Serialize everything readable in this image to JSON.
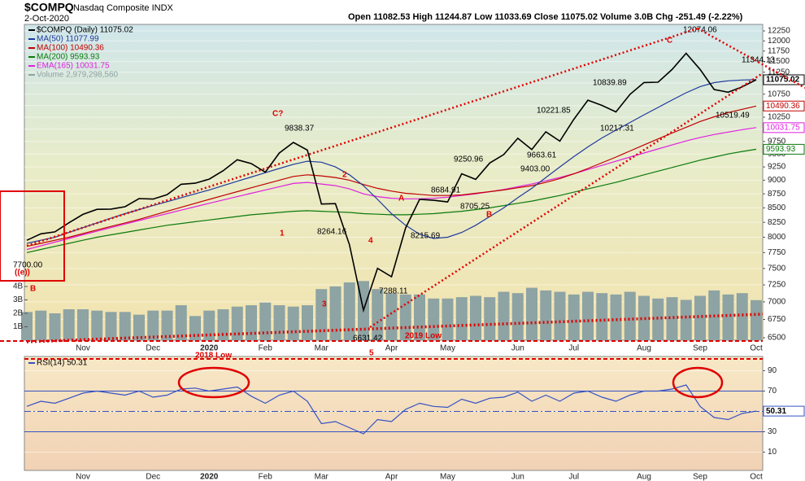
{
  "chart_data": [
    {
      "type": "line",
      "title": "$COMPQ",
      "subtitle": "Nasdaq Composite INDX",
      "date": "2-Oct-2020",
      "quote": "Open 11082.53 High 11244.87 Low 11033.69 Close 11075.02 Volume 3.0B Chg -251.49 (-2.22%)",
      "categories": [
        null,
        null,
        null,
        null,
        "Nov",
        null,
        null,
        null,
        null,
        "Dec",
        null,
        null,
        null,
        "2020",
        null,
        null,
        null,
        "Feb",
        null,
        null,
        null,
        "Mar",
        null,
        null,
        null,
        null,
        "Apr",
        null,
        null,
        null,
        "May",
        null,
        null,
        null,
        null,
        "Jun",
        null,
        null,
        null,
        "Jul",
        null,
        null,
        null,
        null,
        "Aug",
        null,
        null,
        null,
        "Sep",
        null,
        null,
        null,
        "Oct"
      ],
      "log_scale": true,
      "grid": true,
      "ylim": [
        6500,
        12250
      ],
      "yticks": [
        6500,
        6750,
        7000,
        7250,
        7500,
        7750,
        8000,
        8250,
        8500,
        8750,
        9000,
        9250,
        9500,
        9750,
        10000,
        10250,
        10500,
        10750,
        11000,
        11250,
        11500,
        11750,
        12000,
        12250
      ],
      "series": [
        {
          "name": "$COMPQ (Daily) 11075.02",
          "color": "#000000",
          "end_label": true,
          "values": [
            7950,
            8057,
            8089,
            8243,
            8386,
            8475,
            8479,
            8520,
            8665,
            8656,
            8735,
            8925,
            8945,
            9020,
            9179,
            9388,
            9314,
            9151,
            9520,
            9731,
            9577,
            8567,
            8575,
            7875,
            6880,
            7502,
            7373,
            8154,
            8650,
            8634,
            8605,
            9121,
            9015,
            9325,
            9490,
            9814,
            9589,
            9946,
            9757,
            10208,
            10617,
            10503,
            10363,
            10746,
            11011,
            11019,
            11312,
            11696,
            11313,
            10854,
            10793,
            10914,
            11075.02
          ]
        },
        {
          "name": "MA(50) 11077.99",
          "color": "#1f3a9e",
          "end_label": false,
          "values": [
            7900,
            7950,
            8000,
            8080,
            8160,
            8240,
            8320,
            8400,
            8470,
            8540,
            8610,
            8680,
            8750,
            8820,
            8900,
            8980,
            9060,
            9140,
            9220,
            9300,
            9360,
            9340,
            9250,
            9100,
            8900,
            8650,
            8400,
            8200,
            8050,
            7980,
            8000,
            8080,
            8200,
            8350,
            8500,
            8680,
            8850,
            9050,
            9250,
            9450,
            9640,
            9820,
            9980,
            10140,
            10300,
            10460,
            10620,
            10780,
            10920,
            11010,
            11050,
            11070,
            11077.99
          ]
        },
        {
          "name": "MA(100) 10490.36",
          "color": "#c00000",
          "end_label": true,
          "values": [
            7850,
            7900,
            7950,
            8000,
            8060,
            8120,
            8180,
            8240,
            8300,
            8370,
            8440,
            8510,
            8580,
            8650,
            8720,
            8790,
            8860,
            8930,
            9000,
            9070,
            9100,
            9080,
            9050,
            9000,
            8920,
            8850,
            8800,
            8760,
            8740,
            8720,
            8720,
            8730,
            8760,
            8790,
            8820,
            8860,
            8900,
            8960,
            9030,
            9120,
            9220,
            9330,
            9440,
            9560,
            9680,
            9800,
            9920,
            10040,
            10160,
            10260,
            10350,
            10420,
            10490.36
          ]
        },
        {
          "name": "MA(200) 9593.93",
          "color": "#0b7a0b",
          "end_label": true,
          "values": [
            7750,
            7800,
            7850,
            7900,
            7950,
            8000,
            8040,
            8080,
            8120,
            8160,
            8200,
            8230,
            8260,
            8290,
            8320,
            8350,
            8380,
            8400,
            8420,
            8440,
            8450,
            8440,
            8430,
            8420,
            8400,
            8390,
            8380,
            8380,
            8390,
            8400,
            8420,
            8440,
            8470,
            8500,
            8540,
            8580,
            8620,
            8670,
            8720,
            8780,
            8840,
            8900,
            8960,
            9030,
            9100,
            9170,
            9240,
            9310,
            9380,
            9440,
            9500,
            9550,
            9593.93
          ]
        },
        {
          "name": "EMA(165) 10031.75",
          "color": "#e020e0",
          "end_label": true,
          "values": [
            7800,
            7860,
            7920,
            7980,
            8040,
            8100,
            8160,
            8220,
            8280,
            8340,
            8400,
            8460,
            8520,
            8580,
            8640,
            8700,
            8760,
            8820,
            8880,
            8940,
            8960,
            8930,
            8900,
            8840,
            8750,
            8700,
            8670,
            8660,
            8660,
            8670,
            8690,
            8720,
            8750,
            8790,
            8830,
            8880,
            8930,
            8990,
            9050,
            9120,
            9200,
            9280,
            9360,
            9440,
            9520,
            9600,
            9680,
            9760,
            9830,
            9890,
            9940,
            9990,
            10031.75
          ]
        }
      ],
      "volume": {
        "name": "Volume 2,979,298,560",
        "color": "#8ea3a3",
        "ylim": [
          0,
          23000000000
        ],
        "yticks": [
          {
            "value": 1000000000,
            "label": "1B"
          },
          {
            "value": 2000000000,
            "label": "2B"
          },
          {
            "value": 3000000000,
            "label": "3B"
          },
          {
            "value": 4000000000,
            "label": "4B"
          }
        ],
        "values": [
          2100000000,
          2200000000,
          2000000000,
          2300000000,
          2300000000,
          2200000000,
          2100000000,
          2100000000,
          1900000000,
          2200000000,
          2200000000,
          2600000000,
          1800000000,
          2200000000,
          2300000000,
          2500000000,
          2600000000,
          2800000000,
          2600000000,
          2500000000,
          2600000000,
          3800000000,
          4000000000,
          4300000000,
          4400000000,
          3800000000,
          3500000000,
          3400000000,
          3400000000,
          3100000000,
          3100000000,
          3200000000,
          3300000000,
          3200000000,
          3600000000,
          3500000000,
          3900000000,
          3700000000,
          3600000000,
          3400000000,
          3600000000,
          3500000000,
          3400000000,
          3600000000,
          3300000000,
          3100000000,
          3200000000,
          3000000000,
          3300000000,
          3700000000,
          3400000000,
          3500000000,
          2979298560
        ]
      },
      "annotations": [
        {
          "text": "C?",
          "color": "#e00000"
        },
        {
          "text": "9838.37",
          "color": "#000000"
        },
        {
          "text": "2",
          "color": "#e00000"
        },
        {
          "text": "1",
          "color": "#e00000"
        },
        {
          "text": "3",
          "color": "#e00000"
        },
        {
          "text": "4",
          "color": "#e00000"
        },
        {
          "text": "5",
          "color": "#e00000"
        },
        {
          "text": "A",
          "color": "#e00000"
        },
        {
          "text": "B",
          "color": "#e00000"
        },
        {
          "text": "C",
          "color": "#e00000"
        },
        {
          "text": "8264.16",
          "color": "#000000"
        },
        {
          "text": "8215.69",
          "color": "#000000"
        },
        {
          "text": "6631.42",
          "color": "#000000"
        },
        {
          "text": "7288.11",
          "color": "#000000"
        },
        {
          "text": "8684.91",
          "color": "#000000"
        },
        {
          "text": "8705.25",
          "color": "#000000"
        },
        {
          "text": "9250.96",
          "color": "#000000"
        },
        {
          "text": "9403.00",
          "color": "#000000"
        },
        {
          "text": "9663.61",
          "color": "#000000"
        },
        {
          "text": "10221.85",
          "color": "#000000"
        },
        {
          "text": "10217.31",
          "color": "#000000"
        },
        {
          "text": "10839.89",
          "color": "#000000"
        },
        {
          "text": "12074.06",
          "color": "#000000"
        },
        {
          "text": "11344.13",
          "color": "#000000"
        },
        {
          "text": "10519.49",
          "color": "#000000"
        },
        {
          "text": "2019 Low",
          "color": "#e00000"
        },
        {
          "text": "2018 Low",
          "color": "#e00000"
        },
        {
          "text": "B",
          "color": "#e00000"
        },
        {
          "text": "7700.00",
          "color": "#000000"
        },
        {
          "text": "((e))",
          "color": "#e00000"
        }
      ]
    },
    {
      "type": "line",
      "categories": [
        null,
        null,
        null,
        null,
        "Nov",
        null,
        null,
        null,
        null,
        "Dec",
        null,
        null,
        null,
        "2020",
        null,
        null,
        null,
        "Feb",
        null,
        null,
        null,
        "Mar",
        null,
        null,
        null,
        null,
        "Apr",
        null,
        null,
        null,
        "May",
        null,
        null,
        null,
        null,
        "Jun",
        null,
        null,
        null,
        "Jul",
        null,
        null,
        null,
        null,
        "Aug",
        null,
        null,
        null,
        "Sep",
        null,
        null,
        null,
        "Oct"
      ],
      "ylim": [
        0,
        100
      ],
      "yticks": [
        10,
        30,
        50,
        70,
        90
      ],
      "levels": [
        30,
        50,
        70
      ],
      "series": [
        {
          "name": "RSI(14) 50.31",
          "color": "#3552c4",
          "end_label": true,
          "values": [
            55,
            60,
            58,
            63,
            68,
            70,
            68,
            66,
            70,
            64,
            66,
            72,
            73,
            70,
            72,
            74,
            65,
            58,
            66,
            70,
            60,
            38,
            40,
            34,
            28,
            42,
            40,
            52,
            58,
            55,
            54,
            62,
            58,
            63,
            64,
            69,
            60,
            66,
            60,
            68,
            70,
            64,
            60,
            66,
            70,
            70,
            72,
            76,
            55,
            44,
            42,
            48,
            50.31
          ]
        }
      ]
    }
  ]
}
